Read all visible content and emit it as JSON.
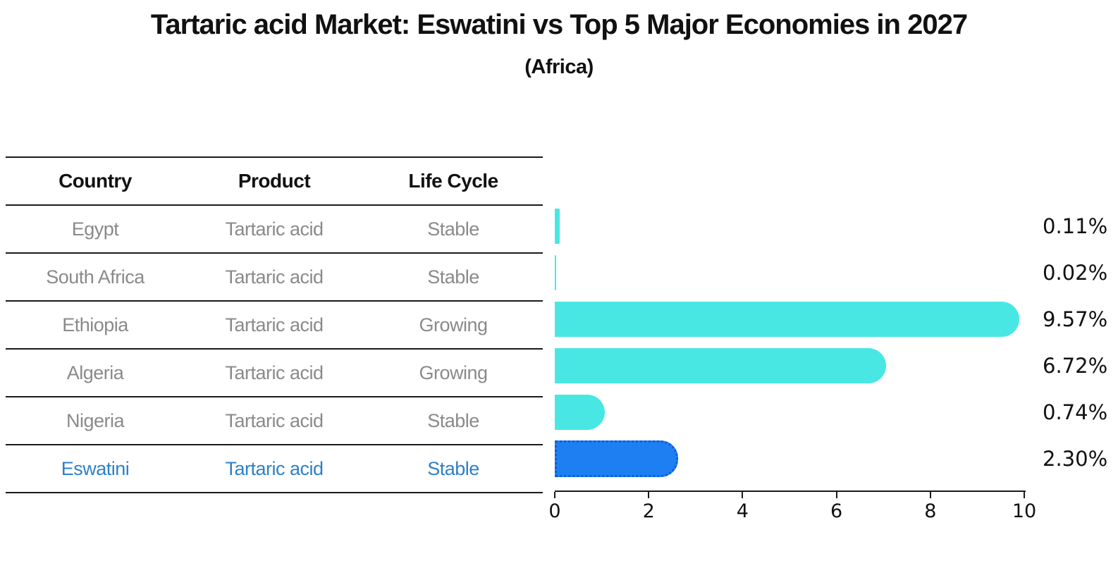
{
  "title": "Tartaric acid Market: Eswatini vs Top 5 Major Economies in 2027",
  "subtitle": "(Africa)",
  "table": {
    "headers": [
      "Country",
      "Product",
      "Life Cycle"
    ],
    "rows": [
      {
        "country": "Egypt",
        "product": "Tartaric acid",
        "life_cycle": "Stable",
        "highlight": false
      },
      {
        "country": "South Africa",
        "product": "Tartaric acid",
        "life_cycle": "Stable",
        "highlight": false
      },
      {
        "country": "Ethiopia",
        "product": "Tartaric acid",
        "life_cycle": "Growing",
        "highlight": false
      },
      {
        "country": "Algeria",
        "product": "Tartaric acid",
        "life_cycle": "Growing",
        "highlight": false
      },
      {
        "country": "Nigeria",
        "product": "Tartaric acid",
        "life_cycle": "Stable",
        "highlight": false
      },
      {
        "country": "Eswatini",
        "product": "Tartaric acid",
        "life_cycle": "Stable",
        "highlight": true
      }
    ]
  },
  "chart_data": {
    "type": "bar",
    "orientation": "horizontal",
    "title": "Tartaric acid Market: Eswatini vs Top 5 Major Economies in 2027",
    "subtitle": "(Africa)",
    "categories": [
      "Egypt",
      "South Africa",
      "Ethiopia",
      "Algeria",
      "Nigeria",
      "Eswatini"
    ],
    "values": [
      0.11,
      0.02,
      9.57,
      6.72,
      0.74,
      2.3
    ],
    "value_labels": [
      "0.11%",
      "0.02%",
      "9.57%",
      "6.72%",
      "0.74%",
      "2.30%"
    ],
    "xlim": [
      0,
      10
    ],
    "x_ticks": [
      0,
      2,
      4,
      6,
      8,
      10
    ],
    "x_tick_labels": [
      "0",
      "2",
      "4",
      "6",
      "8",
      "10"
    ],
    "grid": false,
    "legend": false,
    "highlight_index": 5,
    "bar_color": "#49e7e3",
    "highlight_bar_color": "#1e7ff2",
    "highlight_border_color": "#0c5ed6",
    "label_color": "#111111",
    "row_text_color": "#8a8a8a",
    "highlight_text_color": "#2e80c9"
  }
}
